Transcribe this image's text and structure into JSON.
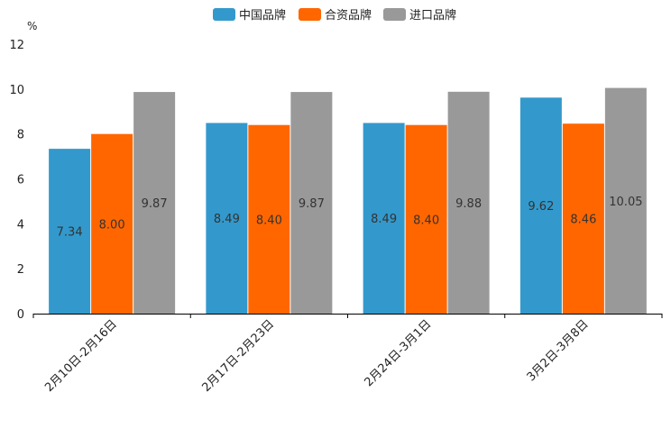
{
  "chart_data": {
    "type": "bar",
    "title": "",
    "xlabel": "",
    "ylabel": "%",
    "ylim": [
      0,
      12
    ],
    "yticks": [
      0,
      2,
      4,
      6,
      8,
      10,
      12
    ],
    "categories": [
      "2月10日-2月16日",
      "2月17日-2月23日",
      "2月24日-3月1日",
      "3月2日-3月8日"
    ],
    "series": [
      {
        "name": "中国品牌",
        "color": "#3399cc",
        "values": [
          7.34,
          8.49,
          8.49,
          9.62
        ]
      },
      {
        "name": "合资品牌",
        "color": "#ff6600",
        "values": [
          8.0,
          8.4,
          8.4,
          8.46
        ]
      },
      {
        "name": "进口品牌",
        "color": "#999999",
        "values": [
          9.87,
          9.87,
          9.88,
          10.05
        ]
      }
    ],
    "legend_position": "top-center",
    "grid": false
  }
}
